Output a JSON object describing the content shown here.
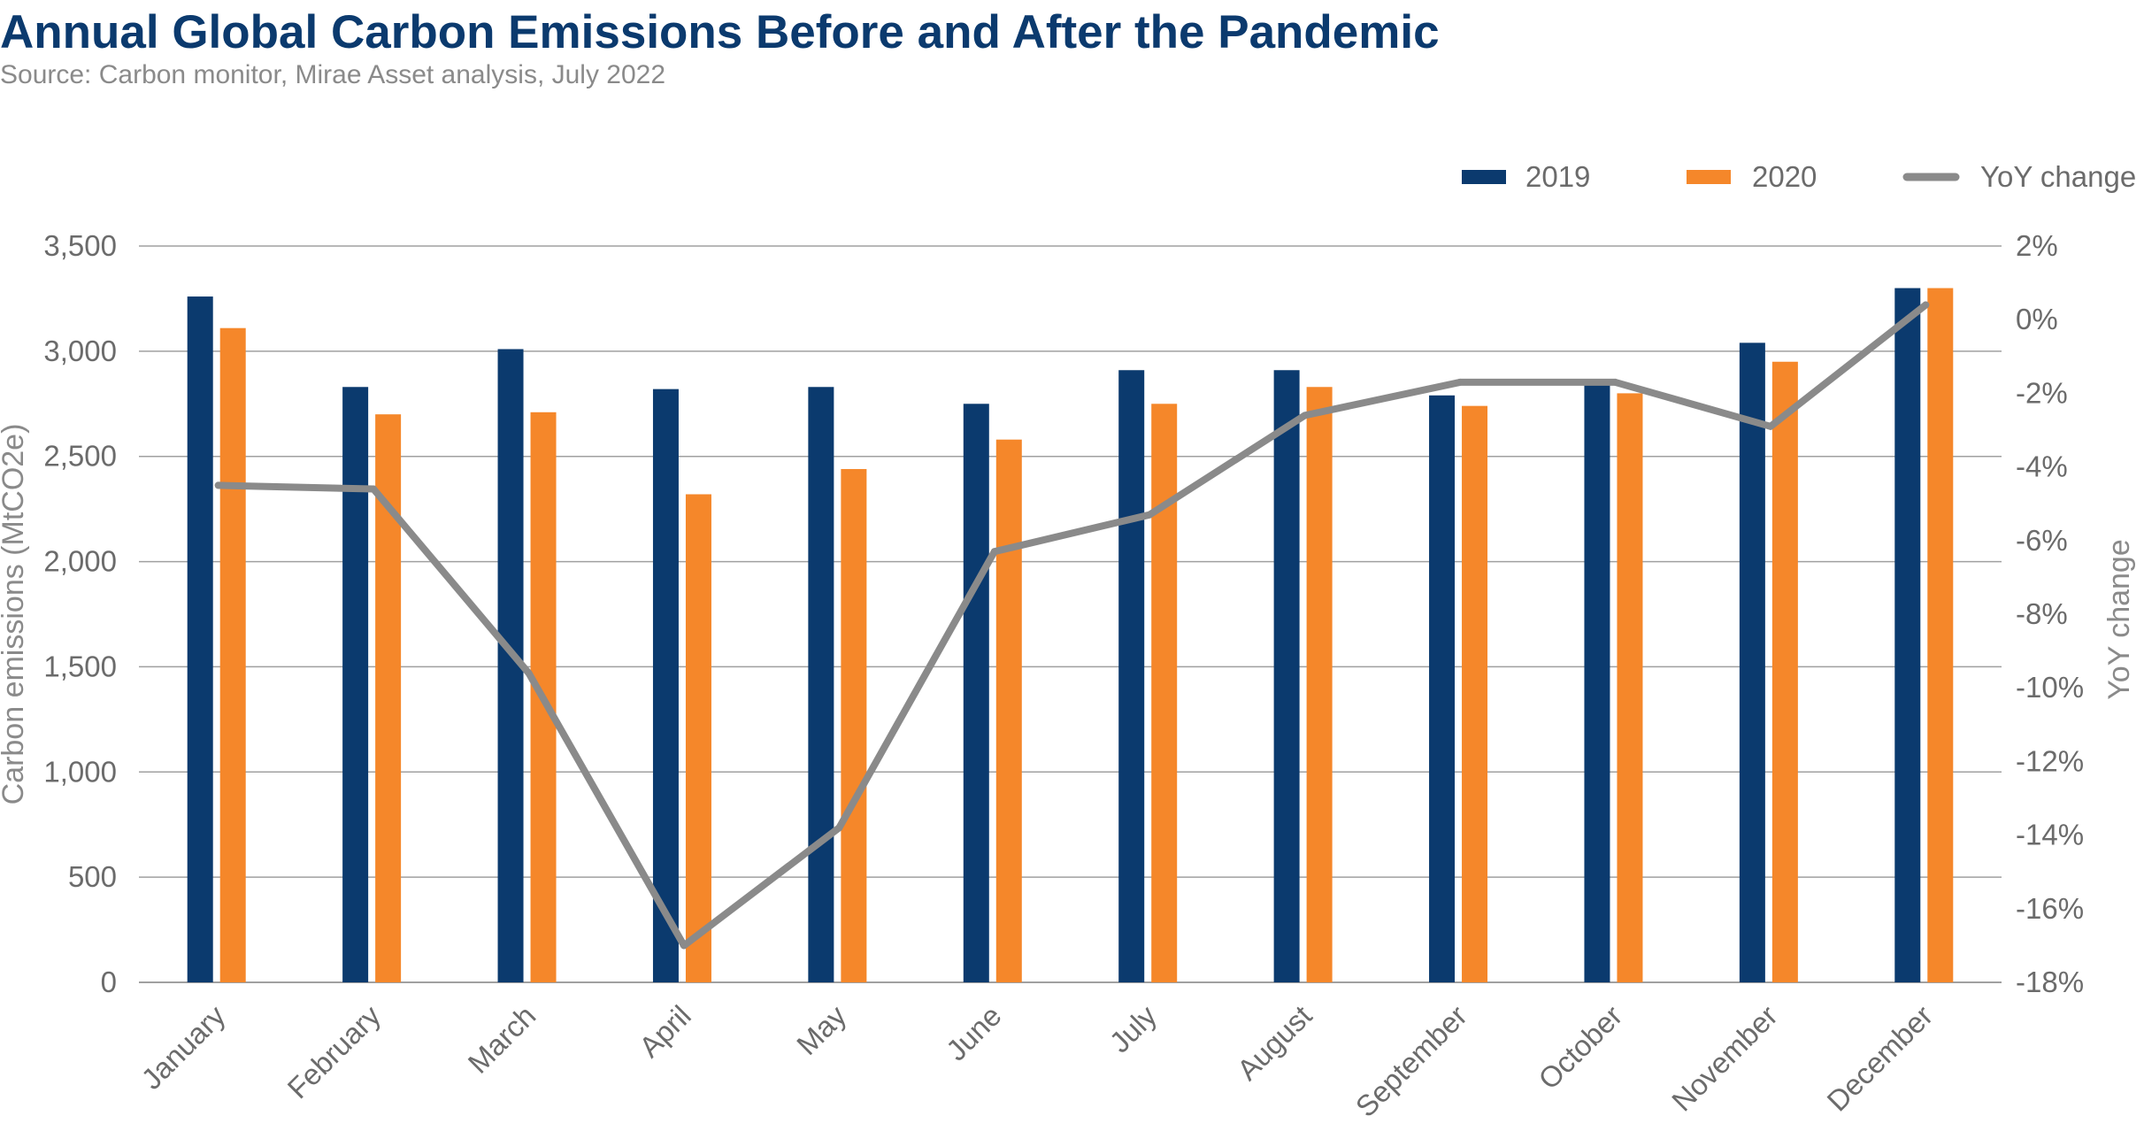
{
  "title": "Annual Global Carbon Emissions Before and After the Pandemic",
  "subtitle": "Source: Carbon monitor, Mirae Asset analysis, July 2022",
  "colors": {
    "series_2019": "#0b3a6e",
    "series_2020": "#f5872a",
    "yoy": "#8a8a8a",
    "grid": "#a0a0a0",
    "title": "#0b3a6e"
  },
  "chart_data": {
    "type": "bar",
    "categories": [
      "January",
      "February",
      "March",
      "April",
      "May",
      "June",
      "July",
      "August",
      "September",
      "October",
      "November",
      "December"
    ],
    "series": [
      {
        "name": "2019",
        "type": "bar",
        "axis": "left",
        "values": [
          3260,
          2830,
          3010,
          2820,
          2830,
          2750,
          2910,
          2910,
          2790,
          2840,
          3040,
          3300
        ]
      },
      {
        "name": "2020",
        "type": "bar",
        "axis": "left",
        "values": [
          3110,
          2700,
          2710,
          2320,
          2440,
          2580,
          2750,
          2830,
          2740,
          2800,
          2950,
          3300
        ]
      },
      {
        "name": "YoY change",
        "type": "line",
        "axis": "right",
        "values": [
          -4.5,
          -4.6,
          -9.6,
          -17.0,
          -13.8,
          -6.3,
          -5.3,
          -2.6,
          -1.7,
          -1.7,
          -2.9,
          0.4
        ]
      }
    ],
    "ylabel": "Carbon emissions (MtCO2e)",
    "ylabel_right": "YoY change",
    "ylim": [
      0,
      3500
    ],
    "ylim_right": [
      -18,
      2
    ],
    "yticks": [
      "0",
      "500",
      "1,000",
      "1,500",
      "2,000",
      "2,500",
      "3,000",
      "3,500"
    ],
    "yticks_right": [
      "-18%",
      "-16%",
      "-14%",
      "-12%",
      "-10%",
      "-8%",
      "-6%",
      "-4%",
      "-2%",
      "0%",
      "2%"
    ],
    "grid": true,
    "legend_position": "top-right"
  }
}
